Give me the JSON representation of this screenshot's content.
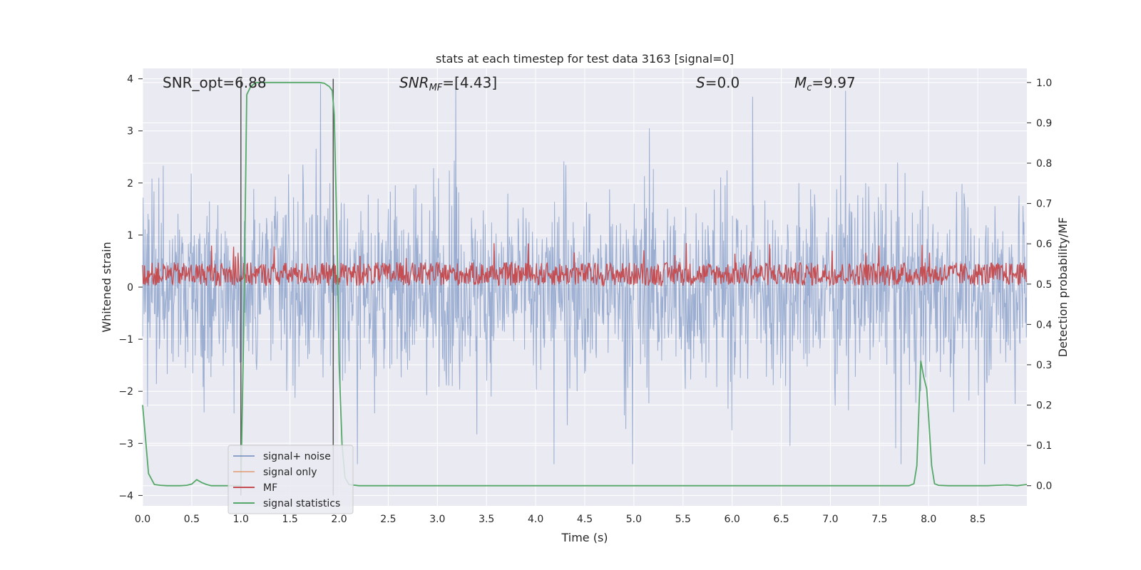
{
  "chart_data": {
    "type": "line",
    "title": "stats at each timestep for test data 3163 [signal=0]",
    "xlabel": "Time (s)",
    "ylabel": "Whitened strain",
    "ylabel_right": "Detection probability/MF",
    "xlim": [
      0,
      9
    ],
    "ylim": [
      -4.2,
      4.2
    ],
    "ylim_right": [
      -0.05,
      1.035
    ],
    "xticks": [
      "0.0",
      "0.5",
      "1.0",
      "1.5",
      "2.0",
      "2.5",
      "3.0",
      "3.5",
      "4.0",
      "4.5",
      "5.0",
      "5.5",
      "6.0",
      "6.5",
      "7.0",
      "7.5",
      "8.0",
      "8.5"
    ],
    "yticks": [
      "−4",
      "−3",
      "−2",
      "−1",
      "0",
      "1",
      "2",
      "3",
      "4"
    ],
    "yticks_right": [
      "0.0",
      "0.1",
      "0.2",
      "0.3",
      "0.4",
      "0.5",
      "0.6",
      "0.7",
      "0.8",
      "0.9",
      "1.0"
    ],
    "grid": true,
    "legend_position": "lower-left",
    "annotations": {
      "snr_opt": "SNR_opt=6.88",
      "snr_mf_main": "SNR",
      "snr_mf_sub": "MF",
      "snr_mf_tail": "=[4.43]",
      "s_main": "S",
      "s_tail": "=0.0",
      "mc_main": "M",
      "mc_sub": "c",
      "mc_tail": "=9.97"
    },
    "vlines_x": [
      1.0,
      1.94
    ],
    "series": [
      {
        "name": "signal+ noise",
        "color": "#4c72b0",
        "kind": "noise",
        "amplitude_1sigma": 0.9,
        "peak_range": [
          -3.4,
          3.9
        ]
      },
      {
        "name": "signal only",
        "color": "#dd8452",
        "kind": "flat",
        "values_y": 0
      },
      {
        "name": "MF",
        "color": "#c44e52",
        "kind": "mf",
        "center": 0.25,
        "band": [
          0.0,
          0.85
        ]
      },
      {
        "name": "signal statistics",
        "color": "#55a868",
        "axis": "right",
        "x": [
          0.0,
          0.06,
          0.12,
          0.18,
          0.25,
          0.32,
          0.38,
          0.45,
          0.5,
          0.55,
          0.6,
          0.65,
          0.7,
          0.75,
          0.8,
          0.85,
          0.9,
          0.95,
          1.0,
          1.03,
          1.06,
          1.1,
          1.15,
          1.2,
          1.3,
          1.4,
          1.5,
          1.6,
          1.7,
          1.8,
          1.85,
          1.9,
          1.93,
          1.95,
          1.98,
          2.0,
          2.03,
          2.06,
          2.1,
          2.2,
          2.5,
          3.0,
          3.5,
          4.0,
          4.5,
          5.0,
          5.5,
          6.0,
          6.5,
          7.0,
          7.5,
          7.8,
          7.85,
          7.88,
          7.9,
          7.92,
          7.95,
          7.98,
          8.0,
          8.03,
          8.06,
          8.1,
          8.2,
          8.4,
          8.6,
          8.7,
          8.8,
          8.9,
          9.0
        ],
        "y": [
          0.2,
          0.03,
          0.003,
          0.001,
          0.0,
          0.0,
          0.0,
          0.001,
          0.004,
          0.015,
          0.008,
          0.003,
          0.0,
          0.0,
          0.0,
          0.0,
          0.0,
          0.0,
          0.0,
          0.4,
          0.97,
          0.99,
          1.0,
          1.0,
          1.0,
          1.0,
          1.0,
          1.0,
          1.0,
          1.0,
          0.998,
          0.99,
          0.98,
          0.92,
          0.6,
          0.3,
          0.1,
          0.02,
          0.003,
          0.0,
          0.0,
          0.0,
          0.0,
          0.0,
          0.0,
          0.0,
          0.0,
          0.0,
          0.0,
          0.0,
          0.0,
          0.0,
          0.005,
          0.05,
          0.18,
          0.31,
          0.27,
          0.24,
          0.17,
          0.05,
          0.005,
          0.001,
          0.0,
          0.0,
          0.0,
          0.001,
          0.002,
          0.0,
          0.003
        ]
      }
    ]
  }
}
